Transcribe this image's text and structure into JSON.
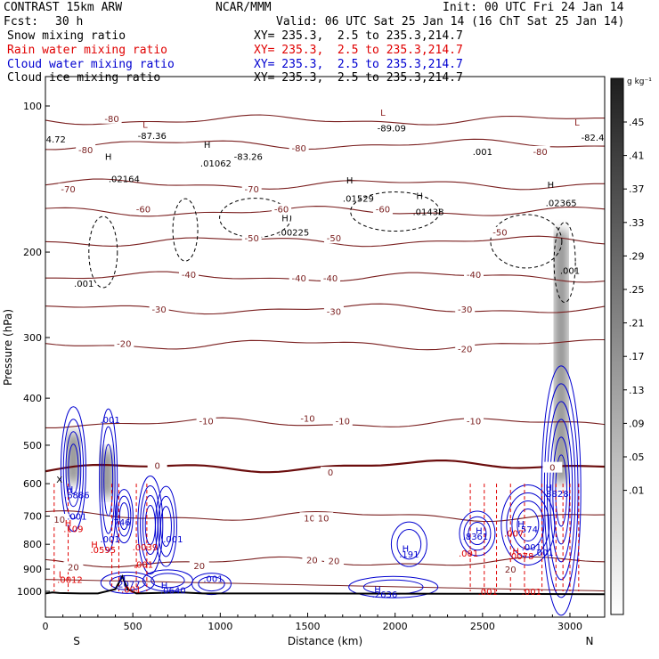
{
  "header": {
    "model": "CONTRAST 15km ARW",
    "org": "NCAR/MMM",
    "init": "Init: 00 UTC Fri 24 Jan 14",
    "fcst_label": "Fcst:",
    "fcst_value": "30 h",
    "valid": "Valid: 06 UTC Sat 25 Jan 14 (16 ChT Sat 25 Jan 14)",
    "fields": [
      {
        "name": "Snow mixing ratio",
        "xy": "XY= 235.3,  2.5 to 235.3,214.7",
        "color": "#000000"
      },
      {
        "name": "Rain water mixing ratio",
        "xy": "XY= 235.3,  2.5 to 235.3,214.7",
        "color": "#e00000"
      },
      {
        "name": "Cloud water mixing ratio",
        "xy": "XY= 235.3,  2.5 to 235.3,214.7",
        "color": "#0000d0"
      },
      {
        "name": "Cloud ice mixing ratio",
        "xy": "XY= 235.3,  2.5 to 235.3,214.7",
        "color": "#000000"
      }
    ]
  },
  "chart_data": {
    "type": "cross-section",
    "xlabel": "Distance (km)",
    "ylabel": "Pressure (hPa)",
    "xlim": [
      0,
      3200
    ],
    "ylim": [
      1000,
      100
    ],
    "y_scale": "log",
    "x_ticks": [
      0,
      500,
      1000,
      1500,
      2000,
      2500,
      3000
    ],
    "y_ticks": [
      100,
      200,
      300,
      400,
      500,
      600,
      700,
      800,
      900,
      1000
    ],
    "endpoints": {
      "left": "S",
      "right": "N"
    },
    "colorbar": {
      "units": "g kg⁻¹",
      "ticks": [
        ".45",
        ".41",
        ".37",
        ".33",
        ".29",
        ".25",
        ".21",
        ".17",
        ".13",
        ".09",
        ".05",
        ".01"
      ]
    },
    "isotherms": [
      {
        "label": "-80",
        "p": 107
      },
      {
        "label": "-80",
        "p": 120
      },
      {
        "label": "-70",
        "p": 145
      },
      {
        "label": "-60",
        "p": 165
      },
      {
        "label": "-50",
        "p": 190
      },
      {
        "label": "-40",
        "p": 225
      },
      {
        "label": "-30",
        "p": 262
      },
      {
        "label": "-20",
        "p": 310
      },
      {
        "label": "-10",
        "p": 450
      },
      {
        "label": "0",
        "p": 560
      },
      {
        "label": "10",
        "p": 700
      },
      {
        "label": "20",
        "p": 870
      }
    ],
    "isotherm_labels": [
      {
        "text": "-80",
        "x": 380,
        "p": 106
      },
      {
        "text": "-80",
        "x": 230,
        "p": 123
      },
      {
        "text": "-80",
        "x": 1450,
        "p": 122
      },
      {
        "text": "-80",
        "x": 2830,
        "p": 124
      },
      {
        "text": "-70",
        "x": 130,
        "p": 148
      },
      {
        "text": "-70",
        "x": 1180,
        "p": 148
      },
      {
        "text": "-60",
        "x": 560,
        "p": 163
      },
      {
        "text": "-60",
        "x": 1350,
        "p": 163
      },
      {
        "text": "-60",
        "x": 1930,
        "p": 163
      },
      {
        "text": "-50",
        "x": 1180,
        "p": 187
      },
      {
        "text": "-50",
        "x": 1650,
        "p": 187
      },
      {
        "text": "-50",
        "x": 2600,
        "p": 182
      },
      {
        "text": "-40",
        "x": 820,
        "p": 222
      },
      {
        "text": "-40",
        "x": 1450,
        "p": 226
      },
      {
        "text": "-40",
        "x": 1630,
        "p": 226
      },
      {
        "text": "-40",
        "x": 2450,
        "p": 222
      },
      {
        "text": "-30",
        "x": 650,
        "p": 262
      },
      {
        "text": "-30",
        "x": 1650,
        "p": 265
      },
      {
        "text": "-30",
        "x": 2400,
        "p": 262
      },
      {
        "text": "-20",
        "x": 450,
        "p": 308
      },
      {
        "text": "-20",
        "x": 2400,
        "p": 316
      },
      {
        "text": "-10",
        "x": 920,
        "p": 445
      },
      {
        "text": "-10",
        "x": 1500,
        "p": 440
      },
      {
        "text": "-10",
        "x": 1700,
        "p": 445
      },
      {
        "text": "-10",
        "x": 2450,
        "p": 445
      },
      {
        "text": "0",
        "x": 640,
        "p": 550
      },
      {
        "text": "0",
        "x": 1630,
        "p": 568
      },
      {
        "text": "0",
        "x": 2900,
        "p": 555
      },
      {
        "text": "10",
        "x": 80,
        "p": 710
      },
      {
        "text": "10",
        "x": 1510,
        "p": 705
      },
      {
        "text": "10",
        "x": 1590,
        "p": 705
      },
      {
        "text": "20",
        "x": 1525,
        "p": 860
      },
      {
        "text": "20",
        "x": 1650,
        "p": 865
      },
      {
        "text": "20",
        "x": 880,
        "p": 885
      },
      {
        "text": "20",
        "x": 160,
        "p": 890
      },
      {
        "text": "20",
        "x": 2660,
        "p": 900
      }
    ],
    "extrema_labels": [
      {
        "text": "L",
        "x": 1930,
        "p": 103,
        "color": "#8b1a1a"
      },
      {
        "text": "-89.09",
        "x": 1980,
        "p": 111,
        "color": "#000000"
      },
      {
        "text": "L",
        "x": 570,
        "p": 109,
        "color": "#8b1a1a"
      },
      {
        "text": "-87.36",
        "x": 610,
        "p": 115,
        "color": "#000000"
      },
      {
        "text": "L",
        "x": 3040,
        "p": 108,
        "color": "#8b1a1a"
      },
      {
        "text": "-82.4",
        "x": 3130,
        "p": 116,
        "color": "#000000"
      },
      {
        "text": "-83.26",
        "x": 1160,
        "p": 127,
        "color": "#000000"
      },
      {
        "text": "4.72",
        "x": 60,
        "p": 117,
        "color": "#000000"
      },
      {
        "text": "H",
        "x": 360,
        "p": 127,
        "color": "#000000"
      },
      {
        "text": ".02164",
        "x": 450,
        "p": 141,
        "color": "#000000"
      },
      {
        "text": "H",
        "x": 925,
        "p": 120,
        "color": "#000000"
      },
      {
        "text": ".01062",
        "x": 975,
        "p": 131,
        "color": "#000000"
      },
      {
        "text": "H",
        "x": 1740,
        "p": 142,
        "color": "#000000"
      },
      {
        "text": ".01529",
        "x": 1790,
        "p": 155,
        "color": "#000000"
      },
      {
        "text": "H",
        "x": 2140,
        "p": 153,
        "color": "#000000"
      },
      {
        "text": ".01438",
        "x": 2190,
        "p": 165,
        "color": "#000000"
      },
      {
        "text": "H",
        "x": 1370,
        "p": 170,
        "color": "#000000"
      },
      {
        "text": ".00225",
        "x": 1420,
        "p": 182,
        "color": "#000000"
      },
      {
        "text": ".001",
        "x": 2500,
        "p": 124,
        "color": "#000000"
      },
      {
        "text": "H",
        "x": 2890,
        "p": 145,
        "color": "#000000"
      },
      {
        "text": ".02365",
        "x": 2950,
        "p": 158,
        "color": "#000000"
      },
      {
        "text": ".001",
        "x": 220,
        "p": 232,
        "color": "#000000"
      },
      {
        "text": ".001",
        "x": 3000,
        "p": 218,
        "color": "#000000"
      },
      {
        "text": ".001",
        "x": 370,
        "p": 442,
        "color": "#0000d0"
      },
      {
        "text": "X",
        "x": 80,
        "p": 587,
        "color": "#000000"
      },
      {
        "text": "H",
        "x": 140,
        "p": 615,
        "color": "#0000d0"
      },
      {
        "text": ".6886",
        "x": 180,
        "p": 632,
        "color": "#0000d0"
      },
      {
        "text": ".001",
        "x": 180,
        "p": 700,
        "color": "#0000d0"
      },
      {
        "text": "H",
        "x": 130,
        "p": 722,
        "color": "#e00000"
      },
      {
        "text": ".109",
        "x": 160,
        "p": 742,
        "color": "#e00000"
      },
      {
        "text": ".746",
        "x": 430,
        "p": 720,
        "color": "#0000d0"
      },
      {
        "text": ".001",
        "x": 370,
        "p": 780,
        "color": "#0000d0"
      },
      {
        "text": "H",
        "x": 280,
        "p": 800,
        "color": "#e00000"
      },
      {
        "text": ".0595",
        "x": 330,
        "p": 820,
        "color": "#e00000"
      },
      {
        "text": ".0039",
        "x": 570,
        "p": 810,
        "color": "#e00000"
      },
      {
        "text": ".001",
        "x": 730,
        "p": 780,
        "color": "#0000d0"
      },
      {
        "text": ".001",
        "x": 560,
        "p": 880,
        "color": "#e00000"
      },
      {
        "text": "L",
        "x": 90,
        "p": 920,
        "color": "#e00000"
      },
      {
        "text": ".0012",
        "x": 140,
        "p": 945,
        "color": "#e00000"
      },
      {
        "text": "H",
        "x": 440,
        "p": 938,
        "color": "#0000d0"
      },
      {
        "text": ".2077",
        "x": 470,
        "p": 965,
        "color": "#0000d0"
      },
      {
        "text": ".001",
        "x": 490,
        "p": 990,
        "color": "#e00000"
      },
      {
        "text": "H",
        "x": 680,
        "p": 970,
        "color": "#0000d0"
      },
      {
        "text": ".0640",
        "x": 730,
        "p": 993,
        "color": "#0000d0"
      },
      {
        "text": ".001",
        "x": 960,
        "p": 940,
        "color": "#0000d0"
      },
      {
        "text": "H",
        "x": 2060,
        "p": 815,
        "color": "#0000d0"
      },
      {
        "text": ".191",
        "x": 2080,
        "p": 838,
        "color": "#0000d0"
      },
      {
        "text": "H",
        "x": 2480,
        "p": 748,
        "color": "#0000d0"
      },
      {
        "text": ".8361",
        "x": 2460,
        "p": 770,
        "color": "#0000d0"
      },
      {
        "text": ".001",
        "x": 2420,
        "p": 833,
        "color": "#e00000"
      },
      {
        "text": "H",
        "x": 2720,
        "p": 726,
        "color": "#0000d0"
      },
      {
        "text": ".574",
        "x": 2760,
        "p": 744,
        "color": "#0000d0"
      },
      {
        "text": ".007",
        "x": 2680,
        "p": 758,
        "color": "#e00000"
      },
      {
        "text": ".001",
        "x": 2780,
        "p": 810,
        "color": "#0000d0"
      },
      {
        "text": "H",
        "x": 2690,
        "p": 825,
        "color": "#e00000"
      },
      {
        "text": ".0078",
        "x": 2720,
        "p": 845,
        "color": "#e00000"
      },
      {
        "text": ".001",
        "x": 2850,
        "p": 830,
        "color": "#0000d0"
      },
      {
        "text": "H",
        "x": 2880,
        "p": 610,
        "color": "#0000d0"
      },
      {
        "text": ".8828",
        "x": 2920,
        "p": 628,
        "color": "#0000d0"
      },
      {
        "text": ".001",
        "x": 2530,
        "p": 1000,
        "color": "#e00000"
      },
      {
        "text": ".001",
        "x": 2780,
        "p": 1000,
        "color": "#e00000"
      },
      {
        "text": "H",
        "x": 1900,
        "p": 990,
        "color": "#0000d0"
      },
      {
        "text": ".2636",
        "x": 1940,
        "p": 1012,
        "color": "#0000d0"
      }
    ],
    "shading_cores": [
      {
        "x": 160,
        "p_top": 470,
        "p_bot": 600
      },
      {
        "x": 350,
        "p_top": 510,
        "p_bot": 640
      },
      {
        "x": 2950,
        "p_top": 180,
        "p_bot": 600
      }
    ],
    "terrain": [
      [
        0,
        1010
      ],
      [
        40,
        1005
      ],
      [
        80,
        1008
      ],
      [
        200,
        1010
      ],
      [
        300,
        1010
      ],
      [
        400,
        990
      ],
      [
        440,
        932
      ],
      [
        470,
        990
      ],
      [
        520,
        1010
      ],
      [
        780,
        1005
      ],
      [
        900,
        1010
      ],
      [
        1500,
        1010
      ],
      [
        2500,
        1012
      ],
      [
        3000,
        1013
      ],
      [
        3200,
        1014
      ]
    ]
  }
}
